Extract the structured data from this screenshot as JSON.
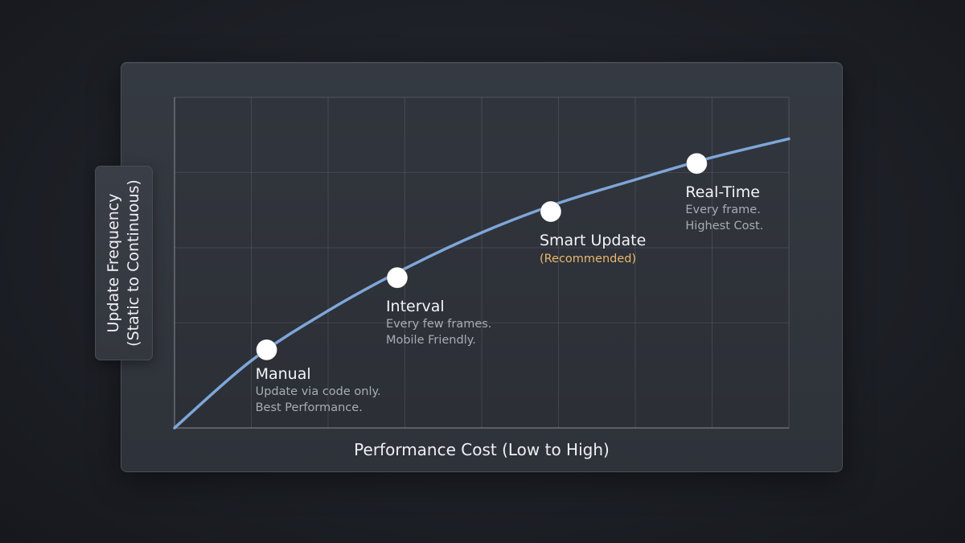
{
  "chart_data": {
    "type": "line",
    "title": "",
    "xlabel": "Performance Cost (Low to High)",
    "ylabel_lines": [
      "Update Frequency",
      "(Static to Continuous)"
    ],
    "x_tick_labels": [],
    "y_tick_labels": [],
    "grid": true,
    "legend": "none",
    "series": [
      {
        "color": "#7ea6d8",
        "x": [
          0,
          1,
          2,
          3,
          4,
          5,
          6,
          7,
          8
        ],
        "y": [
          0,
          1.12,
          1.95,
          2.65,
          3.25,
          3.74,
          4.13,
          4.5,
          4.81
        ]
      }
    ],
    "points": [
      {
        "x": 1.2,
        "y": 1.3,
        "label": "Manual",
        "lines": [
          "Update via code only.",
          "Best Performance."
        ],
        "note": ""
      },
      {
        "x": 2.9,
        "y": 2.5,
        "label": "Interval",
        "lines": [
          "Every few frames.",
          "Mobile Friendly."
        ],
        "note": ""
      },
      {
        "x": 4.9,
        "y": 3.6,
        "label": "Smart Update",
        "lines": [],
        "note": "(Recommended)"
      },
      {
        "x": 6.8,
        "y": 4.4,
        "label": "Real-Time",
        "lines": [
          "Every frame.",
          "Highest Cost."
        ],
        "note": ""
      }
    ],
    "xlim": [
      0,
      8
    ],
    "ylim": [
      0,
      5.5
    ]
  },
  "colors": {
    "curve": "#7ea6d8",
    "recommended_accent": "#e9b86c",
    "point_fill": "#ffffff"
  }
}
